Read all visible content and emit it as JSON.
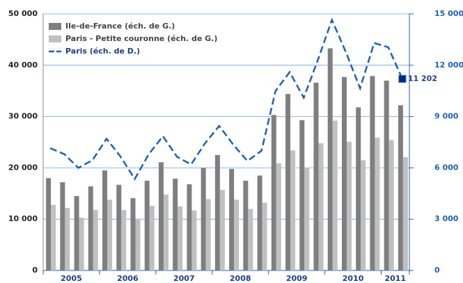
{
  "chart_data": {
    "type": "bar",
    "categories": [
      "2005",
      null,
      null,
      null,
      "2006",
      null,
      null,
      null,
      "2007",
      null,
      null,
      null,
      "2008",
      null,
      null,
      null,
      "2009",
      null,
      null,
      null,
      "2010",
      null,
      null,
      null,
      "2011",
      null
    ],
    "series": [
      {
        "name": "Ile-de-France (éch. de G.)",
        "type": "bar",
        "color": "#7f7f7f",
        "values": [
          18000,
          17200,
          14500,
          16400,
          19500,
          16700,
          14100,
          17500,
          21100,
          17900,
          16800,
          20000,
          22500,
          19800,
          17500,
          18500,
          30300,
          34400,
          29300,
          36600,
          43300,
          37700,
          31800,
          37900,
          37000,
          32200
        ]
      },
      {
        "name": "Paris - Petite couronne (éch. de G.)",
        "type": "bar",
        "color": "#c0c0c0",
        "values": [
          12800,
          12200,
          10300,
          11800,
          13800,
          11800,
          9900,
          12600,
          14800,
          12500,
          11700,
          13900,
          15700,
          13800,
          12000,
          13200,
          20900,
          23400,
          19900,
          24800,
          29200,
          25100,
          21500,
          25900,
          25400,
          22100
        ]
      },
      {
        "name": "Paris (éch. de D.)",
        "type": "line",
        "axis": "y2",
        "color": "#1f5fb5",
        "values": [
          7150,
          6800,
          6000,
          6450,
          7700,
          6650,
          5350,
          6800,
          7850,
          6650,
          6200,
          7450,
          8450,
          7350,
          6400,
          7000,
          10500,
          11600,
          10100,
          12300,
          14650,
          12750,
          10650,
          13300,
          13050,
          11202
        ],
        "value_labels": [
          null,
          null,
          null,
          null,
          null,
          null,
          null,
          null,
          null,
          null,
          null,
          null,
          null,
          null,
          null,
          null,
          null,
          null,
          null,
          null,
          null,
          null,
          null,
          null,
          null,
          "11 202"
        ]
      }
    ],
    "ylim": [
      0,
      50000
    ],
    "yticks": [
      0,
      {
        "value": 10000,
        "label": "10 000"
      },
      {
        "value": 20000,
        "label": "20 000"
      },
      {
        "value": 30000,
        "label": "30 000"
      },
      {
        "value": 40000,
        "label": "40 000"
      },
      {
        "value": 50000,
        "label": "50 000"
      }
    ],
    "y2lim": [
      0,
      15000
    ],
    "y2ticks": [
      0,
      {
        "value": 3000,
        "label": "3 000"
      },
      {
        "value": 6000,
        "label": "6 000"
      },
      {
        "value": 9000,
        "label": "9 000"
      },
      {
        "value": 12000,
        "label": "12 000"
      },
      {
        "value": 15000,
        "label": "15 000"
      }
    ],
    "grid": true,
    "legend": "top-left"
  }
}
